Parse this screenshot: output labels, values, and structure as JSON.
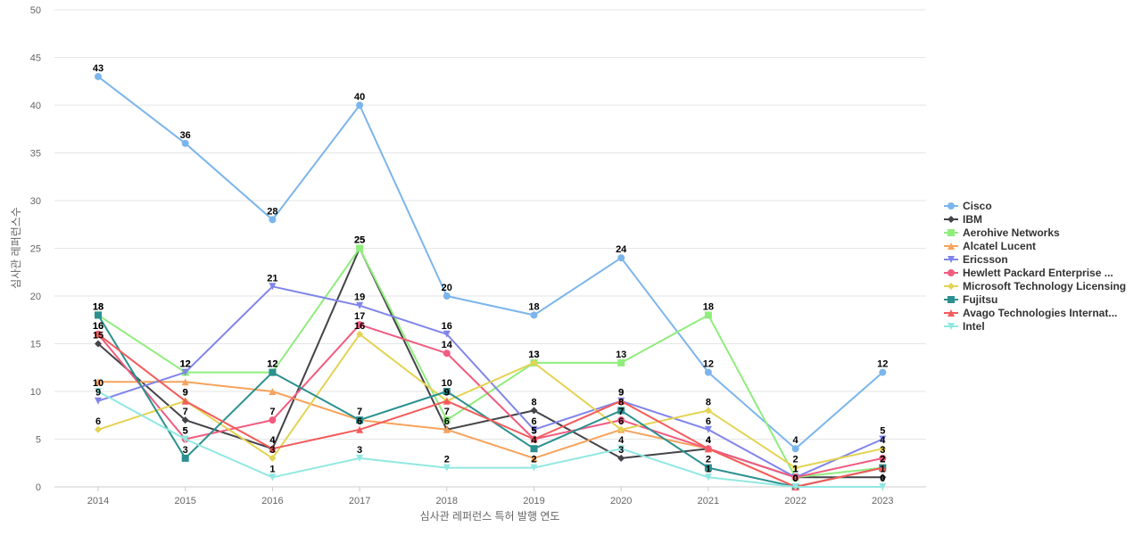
{
  "chart_data": {
    "type": "line",
    "title": "",
    "xlabel": "심사관 레퍼런스 특허 발행 연도",
    "ylabel": "심사관 레퍼런스수",
    "ylim": [
      0,
      50
    ],
    "yticks": [
      0,
      5,
      10,
      15,
      20,
      25,
      30,
      35,
      40,
      45,
      50
    ],
    "grid": true,
    "legend_position": "right",
    "x": [
      "2014",
      "2015",
      "2016",
      "2017",
      "2018",
      "2019",
      "2020",
      "2021",
      "2022",
      "2023"
    ],
    "series": [
      {
        "name": "Cisco",
        "color": "#7cb5ec",
        "marker": "circle",
        "values": [
          43,
          36,
          28,
          40,
          20,
          18,
          24,
          12,
          4,
          12
        ]
      },
      {
        "name": "IBM",
        "color": "#434348",
        "marker": "diamond",
        "values": [
          15,
          7,
          4,
          25,
          6,
          8,
          3,
          4,
          1,
          1
        ]
      },
      {
        "name": "Aerohive Networks",
        "color": "#90ed7d",
        "marker": "square",
        "values": [
          18,
          12,
          12,
          25,
          7,
          13,
          13,
          18,
          1,
          2
        ]
      },
      {
        "name": "Alcatel Lucent",
        "color": "#f7a35c",
        "marker": "triangle",
        "values": [
          11,
          11,
          10,
          7,
          6,
          3,
          6,
          4,
          0,
          2
        ]
      },
      {
        "name": "Ericsson",
        "color": "#8085e9",
        "marker": "triangle-down",
        "values": [
          9,
          12,
          21,
          19,
          16,
          6,
          9,
          6,
          1,
          5
        ]
      },
      {
        "name": "Hewlett Packard Enterprise ...",
        "color": "#f15c80",
        "marker": "circle",
        "values": [
          16,
          5,
          7,
          17,
          14,
          5,
          7,
          4,
          1,
          3
        ]
      },
      {
        "name": "Microsoft Technology Licensing",
        "color": "#e4d354",
        "marker": "diamond",
        "values": [
          6,
          9,
          3,
          16,
          9,
          13,
          6,
          8,
          2,
          4
        ]
      },
      {
        "name": "Fujitsu",
        "color": "#2b908f",
        "marker": "square",
        "values": [
          18,
          3,
          12,
          7,
          10,
          4,
          8,
          2,
          0,
          2
        ]
      },
      {
        "name": "Avago Technologies Internat...",
        "color": "#f45b5b",
        "marker": "triangle",
        "values": [
          16,
          9,
          4,
          6,
          9,
          5,
          9,
          4,
          0,
          2
        ]
      },
      {
        "name": "Intel",
        "color": "#91e8e1",
        "marker": "triangle-down",
        "values": [
          10,
          5,
          1,
          3,
          2,
          2,
          4,
          1,
          0,
          0
        ]
      }
    ],
    "data_labels": [
      {
        "series": 0,
        "points": [
          0,
          1,
          2,
          3,
          4,
          5,
          6,
          7,
          8,
          9
        ]
      },
      {
        "series": 1,
        "points": [
          0,
          1,
          2,
          3,
          4,
          5,
          6,
          7,
          8,
          9
        ]
      },
      {
        "series": 2,
        "points": [
          0,
          1,
          2,
          3,
          4,
          5,
          6,
          7,
          8,
          9
        ]
      },
      {
        "series": 4,
        "points": [
          0,
          1,
          2,
          3,
          4,
          5,
          6,
          7,
          8,
          9
        ]
      },
      {
        "series": 5,
        "points": [
          0,
          1,
          2,
          3,
          4,
          5,
          6,
          7,
          8,
          9
        ]
      },
      {
        "series": 6,
        "points": [
          0,
          1,
          2,
          3,
          4,
          5,
          6,
          7,
          8,
          9
        ]
      },
      {
        "series": 7,
        "points": [
          0,
          1,
          2,
          3,
          4,
          5,
          6,
          7,
          8,
          9
        ]
      },
      {
        "series": 8,
        "points": [
          0,
          1,
          2,
          3,
          4,
          5,
          6,
          7,
          8,
          9
        ]
      },
      {
        "series": 9,
        "points": [
          0,
          1,
          2,
          3,
          4,
          5,
          6,
          7,
          8,
          9
        ]
      }
    ]
  }
}
